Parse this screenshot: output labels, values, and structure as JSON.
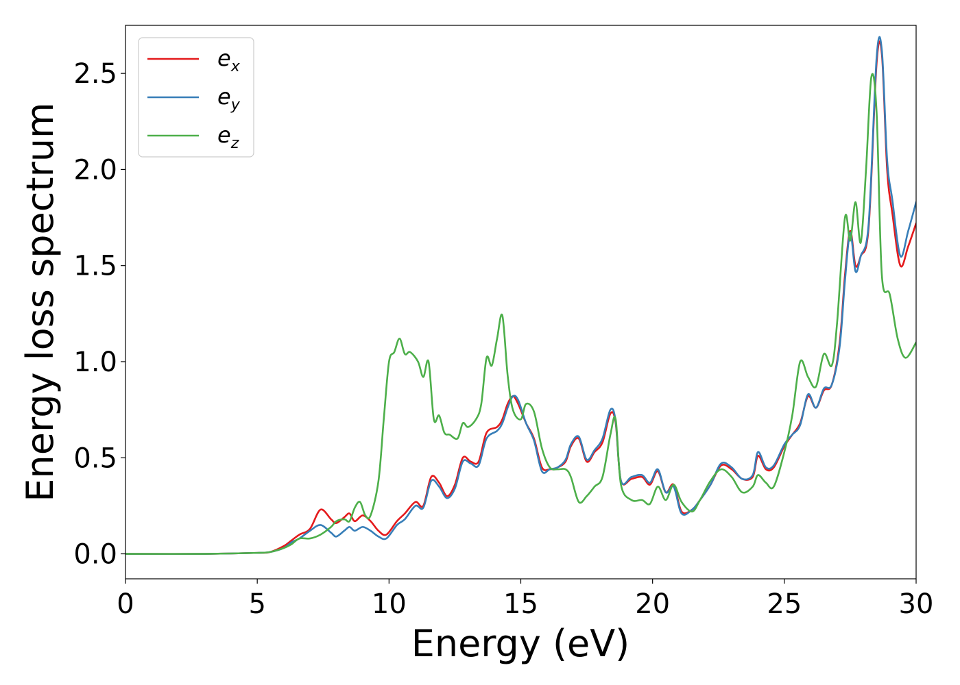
{
  "chart_data": {
    "type": "line",
    "title": "",
    "xlabel": "Energy (eV)",
    "ylabel": "Energy loss spectrum",
    "xlim": [
      0,
      30
    ],
    "ylim": [
      -0.13,
      2.75
    ],
    "xticks": [
      0,
      5,
      10,
      15,
      20,
      25,
      30
    ],
    "xtick_labels": [
      "0",
      "5",
      "10",
      "15",
      "20",
      "25",
      "30"
    ],
    "yticks": [
      0.0,
      0.5,
      1.0,
      1.5,
      2.0,
      2.5
    ],
    "ytick_labels": [
      "0.0",
      "0.5",
      "1.0",
      "1.5",
      "2.0",
      "2.5"
    ],
    "grid": false,
    "legend_position": "top-left",
    "series": [
      {
        "name": "e_x",
        "legend_base": "e",
        "legend_sub": "x",
        "color": "#e41a1c",
        "x": [
          0,
          3,
          5,
          5.5,
          6,
          6.3,
          6.6,
          7,
          7.4,
          7.8,
          8.0,
          8.3,
          8.5,
          8.7,
          9.0,
          9.3,
          9.6,
          9.9,
          10.3,
          10.6,
          11.0,
          11.3,
          11.6,
          11.9,
          12.2,
          12.5,
          12.8,
          13.1,
          13.4,
          13.7,
          14.1,
          14.3,
          14.5,
          14.7,
          14.9,
          15.2,
          15.5,
          15.8,
          16.1,
          16.4,
          16.7,
          16.9,
          17.2,
          17.5,
          17.8,
          18.1,
          18.4,
          18.6,
          18.8,
          19.2,
          19.6,
          19.9,
          20.2,
          20.5,
          20.8,
          21.1,
          21.5,
          21.8,
          22.2,
          22.6,
          23.0,
          23.4,
          23.8,
          24.0,
          24.3,
          24.6,
          25.0,
          25.3,
          25.6,
          25.9,
          26.2,
          26.5,
          26.8,
          27.1,
          27.3,
          27.5,
          27.7,
          27.9,
          28.2,
          28.5,
          28.7,
          28.9,
          29.1,
          29.4,
          29.7,
          30.0
        ],
        "y": [
          0.0,
          0.0,
          0.005,
          0.01,
          0.04,
          0.07,
          0.1,
          0.13,
          0.23,
          0.18,
          0.16,
          0.19,
          0.21,
          0.17,
          0.2,
          0.17,
          0.12,
          0.1,
          0.17,
          0.21,
          0.27,
          0.25,
          0.4,
          0.37,
          0.3,
          0.36,
          0.5,
          0.48,
          0.48,
          0.63,
          0.66,
          0.7,
          0.78,
          0.82,
          0.78,
          0.68,
          0.6,
          0.45,
          0.44,
          0.45,
          0.48,
          0.56,
          0.6,
          0.48,
          0.53,
          0.58,
          0.73,
          0.68,
          0.38,
          0.39,
          0.4,
          0.36,
          0.43,
          0.32,
          0.36,
          0.22,
          0.23,
          0.28,
          0.36,
          0.46,
          0.44,
          0.39,
          0.4,
          0.51,
          0.44,
          0.45,
          0.56,
          0.62,
          0.68,
          0.82,
          0.76,
          0.85,
          0.88,
          1.1,
          1.45,
          1.68,
          1.5,
          1.55,
          1.7,
          2.55,
          2.6,
          2.0,
          1.77,
          1.5,
          1.6,
          1.72
        ]
      },
      {
        "name": "e_y",
        "legend_base": "e",
        "legend_sub": "y",
        "color": "#377eb8",
        "x": [
          0,
          3,
          5,
          5.5,
          6,
          6.3,
          6.6,
          7,
          7.4,
          7.8,
          8.0,
          8.3,
          8.5,
          8.7,
          9.0,
          9.3,
          9.6,
          9.9,
          10.3,
          10.6,
          11.0,
          11.3,
          11.6,
          11.9,
          12.2,
          12.5,
          12.8,
          13.1,
          13.4,
          13.7,
          14.1,
          14.3,
          14.5,
          14.7,
          14.9,
          15.2,
          15.5,
          15.8,
          16.1,
          16.4,
          16.7,
          16.9,
          17.2,
          17.5,
          17.8,
          18.1,
          18.4,
          18.6,
          18.8,
          19.2,
          19.6,
          19.9,
          20.2,
          20.5,
          20.8,
          21.1,
          21.5,
          21.8,
          22.2,
          22.6,
          23.0,
          23.4,
          23.8,
          24.0,
          24.3,
          24.6,
          25.0,
          25.3,
          25.6,
          25.9,
          26.2,
          26.5,
          26.8,
          27.1,
          27.3,
          27.5,
          27.7,
          27.9,
          28.2,
          28.5,
          28.7,
          28.9,
          29.1,
          29.4,
          29.7,
          30.0
        ],
        "y": [
          0.0,
          0.0,
          0.005,
          0.01,
          0.03,
          0.06,
          0.08,
          0.12,
          0.15,
          0.11,
          0.09,
          0.12,
          0.14,
          0.12,
          0.14,
          0.12,
          0.09,
          0.08,
          0.15,
          0.18,
          0.25,
          0.24,
          0.38,
          0.35,
          0.29,
          0.34,
          0.48,
          0.47,
          0.46,
          0.6,
          0.64,
          0.68,
          0.76,
          0.82,
          0.8,
          0.68,
          0.59,
          0.43,
          0.44,
          0.45,
          0.49,
          0.57,
          0.61,
          0.49,
          0.54,
          0.6,
          0.75,
          0.69,
          0.38,
          0.4,
          0.41,
          0.37,
          0.44,
          0.32,
          0.35,
          0.21,
          0.23,
          0.28,
          0.36,
          0.47,
          0.45,
          0.39,
          0.41,
          0.53,
          0.45,
          0.46,
          0.57,
          0.62,
          0.67,
          0.83,
          0.76,
          0.86,
          0.88,
          1.08,
          1.42,
          1.67,
          1.47,
          1.55,
          1.72,
          2.58,
          2.62,
          2.05,
          1.84,
          1.55,
          1.68,
          1.83
        ]
      },
      {
        "name": "e_z",
        "legend_base": "e",
        "legend_sub": "z",
        "color": "#4daf4a",
        "x": [
          0,
          3,
          5,
          5.5,
          6,
          6.3,
          6.6,
          7,
          7.4,
          7.8,
          8.0,
          8.3,
          8.5,
          8.7,
          8.9,
          9.1,
          9.3,
          9.6,
          9.8,
          10.0,
          10.2,
          10.4,
          10.6,
          10.8,
          11.1,
          11.3,
          11.5,
          11.7,
          11.9,
          12.1,
          12.3,
          12.6,
          12.8,
          13.0,
          13.3,
          13.5,
          13.7,
          13.9,
          14.1,
          14.3,
          14.5,
          14.7,
          15.0,
          15.2,
          15.5,
          15.8,
          16.1,
          16.4,
          16.7,
          16.9,
          17.2,
          17.5,
          17.8,
          18.1,
          18.4,
          18.6,
          18.8,
          19.2,
          19.6,
          19.9,
          20.2,
          20.5,
          20.8,
          21.1,
          21.5,
          21.8,
          22.2,
          22.6,
          23.0,
          23.4,
          23.8,
          24.0,
          24.3,
          24.6,
          25.0,
          25.3,
          25.6,
          25.9,
          26.2,
          26.5,
          26.8,
          27.0,
          27.3,
          27.5,
          27.7,
          27.9,
          28.1,
          28.3,
          28.5,
          28.7,
          29.0,
          29.3,
          29.6,
          30.0
        ],
        "y": [
          0.0,
          0.0,
          0.005,
          0.01,
          0.03,
          0.05,
          0.08,
          0.08,
          0.1,
          0.14,
          0.17,
          0.18,
          0.17,
          0.24,
          0.27,
          0.2,
          0.2,
          0.38,
          0.7,
          1.0,
          1.05,
          1.12,
          1.04,
          1.05,
          1.0,
          0.92,
          1.0,
          0.7,
          0.72,
          0.63,
          0.62,
          0.6,
          0.68,
          0.66,
          0.7,
          0.78,
          1.02,
          0.98,
          1.12,
          1.24,
          0.93,
          0.75,
          0.7,
          0.78,
          0.74,
          0.55,
          0.45,
          0.44,
          0.44,
          0.4,
          0.27,
          0.3,
          0.35,
          0.4,
          0.62,
          0.7,
          0.36,
          0.28,
          0.28,
          0.26,
          0.35,
          0.28,
          0.36,
          0.27,
          0.22,
          0.28,
          0.38,
          0.44,
          0.4,
          0.32,
          0.35,
          0.41,
          0.37,
          0.35,
          0.53,
          0.72,
          1.0,
          0.92,
          0.87,
          1.04,
          0.98,
          1.2,
          1.75,
          1.63,
          1.83,
          1.62,
          2.0,
          2.48,
          2.3,
          1.45,
          1.35,
          1.12,
          1.02,
          1.1
        ]
      }
    ]
  }
}
